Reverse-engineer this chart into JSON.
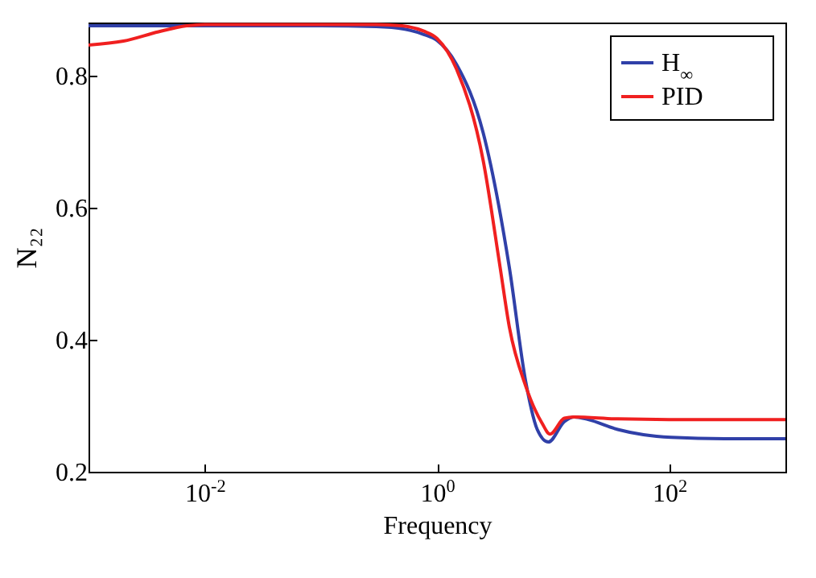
{
  "chart_data": {
    "type": "line",
    "xlabel": "Frequency",
    "ylabel": "N₂₂",
    "log": "x",
    "grid": false,
    "legend": "top right",
    "line_style": "solid",
    "xlim": [
      0.001,
      1000
    ],
    "ylim": [
      0.2,
      0.88
    ],
    "xticks": [
      {
        "value": 0.01,
        "label": "10$^{-2}$"
      },
      {
        "value": 1,
        "label": "10$^{0}$"
      },
      {
        "value": 100,
        "label": "10$^{2}$"
      }
    ],
    "yticks": [
      0.2,
      0.4,
      0.6,
      0.8
    ],
    "series": [
      {
        "name": "H$_{∞}$",
        "color": "#3040a8",
        "x": [
          0.001,
          0.01,
          0.1,
          0.3,
          0.53,
          0.77,
          1,
          1.47,
          2.5,
          4.2,
          5.8,
          7.3,
          9.1,
          12.5,
          15.2,
          20,
          36,
          60,
          104,
          300,
          1000
        ],
        "values": [
          0.875,
          0.875,
          0.875,
          0.874,
          0.87,
          0.862,
          0.853,
          0.817,
          0.713,
          0.509,
          0.337,
          0.264,
          0.245,
          0.276,
          0.283,
          0.279,
          0.264,
          0.256,
          0.252,
          0.25,
          0.25
        ]
      },
      {
        "name": "PID",
        "color": "#f02020",
        "x": [
          0.001,
          0.002,
          0.004,
          0.007,
          0.01,
          0.1,
          0.3,
          0.5,
          0.77,
          1,
          1.47,
          2.5,
          3.5,
          4.2,
          5.8,
          8,
          9.4,
          12.5,
          15,
          36,
          100,
          1000
        ],
        "values": [
          0.846,
          0.852,
          0.866,
          0.875,
          0.877,
          0.877,
          0.877,
          0.875,
          0.867,
          0.856,
          0.81,
          0.671,
          0.509,
          0.419,
          0.33,
          0.274,
          0.257,
          0.281,
          0.283,
          0.28,
          0.279,
          0.279
        ]
      }
    ]
  }
}
